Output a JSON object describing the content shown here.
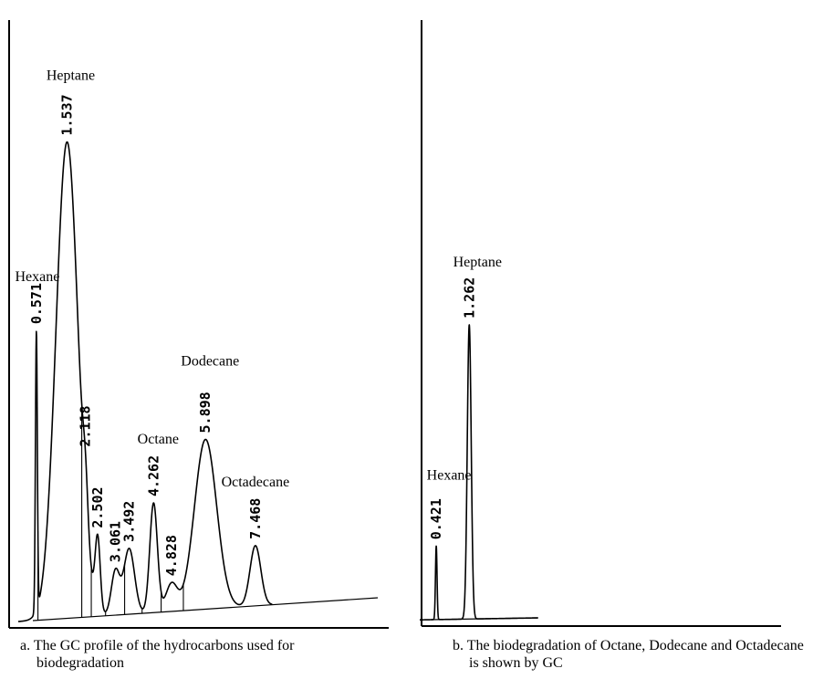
{
  "chart_data": [
    {
      "type": "line",
      "panel": "a",
      "caption_line1": "a. The GC profile of the hydrocarbons used for",
      "caption_line2": "biodegradation",
      "peaks": [
        {
          "rt": 0.571,
          "label": "0.571",
          "height": 0.51,
          "width": 0.03,
          "compound": "Hexane"
        },
        {
          "rt": 1.537,
          "label": "1.537",
          "height": 0.87,
          "width": 0.35,
          "compound": "Heptane"
        },
        {
          "rt": 2.118,
          "label": "2.118",
          "height": 0.08,
          "width": 0.08,
          "compound": ""
        },
        {
          "rt": 2.502,
          "label": "2.502",
          "height": 0.13,
          "width": 0.08,
          "compound": ""
        },
        {
          "rt": 3.061,
          "label": "3.061",
          "height": 0.08,
          "width": 0.13,
          "compound": ""
        },
        {
          "rt": 3.492,
          "label": "3.492",
          "height": 0.12,
          "width": 0.17,
          "compound": ""
        },
        {
          "rt": 4.262,
          "label": "4.262",
          "height": 0.2,
          "width": 0.12,
          "compound": "Octane"
        },
        {
          "rt": 4.828,
          "label": "4.828",
          "height": 0.05,
          "width": 0.18,
          "compound": ""
        },
        {
          "rt": 5.898,
          "label": "5.898",
          "height": 0.31,
          "width": 0.35,
          "compound": "Dodecane"
        },
        {
          "rt": 7.468,
          "label": "7.468",
          "height": 0.11,
          "width": 0.17,
          "compound": "Octadecane"
        }
      ]
    },
    {
      "type": "line",
      "panel": "b",
      "caption_line1": "b. The biodegradation of Octane, Dodecane and Octadecane",
      "caption_line2": "is shown by GC",
      "peaks": [
        {
          "rt": 0.421,
          "label": "0.421",
          "height": 0.13,
          "width": 0.02,
          "compound": "Hexane"
        },
        {
          "rt": 1.262,
          "label": "1.262",
          "height": 0.52,
          "width": 0.05,
          "compound": "Heptane"
        }
      ]
    }
  ]
}
